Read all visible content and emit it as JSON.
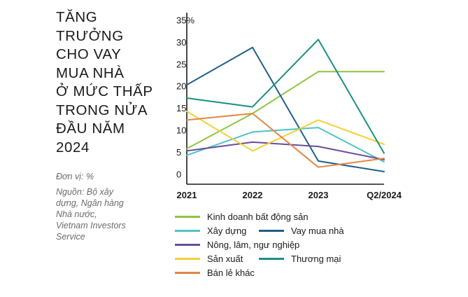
{
  "title_lines": [
    "TĂNG",
    "TRƯỞNG",
    "CHO VAY",
    "MUA NHÀ",
    "Ở MỨC THẤP",
    "TRONG NỬA",
    "ĐẦU NĂM",
    "2024"
  ],
  "unit": "Đơn vị: %",
  "source_lines": [
    "Nguồn: Bộ xây",
    "dựng, Ngân hàng",
    "Nhà nước,",
    "Vietnam Investors",
    "Service"
  ],
  "chart_data": {
    "type": "line",
    "title": "TĂNG TRƯỞNG CHO VAY MUA NHÀ Ở MỨC THẤP TRONG NỬA ĐẦU NĂM 2024",
    "unit": "%",
    "categories": [
      "2021",
      "2022",
      "2023",
      "Q2/2024"
    ],
    "ylim": [
      0,
      35
    ],
    "yticks": [
      0,
      5,
      10,
      15,
      20,
      25,
      30,
      35
    ],
    "ytick_labels": [
      "0",
      "5",
      "10",
      "15",
      "20",
      "25",
      "30",
      "35%"
    ],
    "grid": false,
    "legend_position": "bottom",
    "series": [
      {
        "name": "Kinh doanh bất động sản",
        "color": "#8dc63f",
        "values": [
          6,
          14,
          23.5,
          23.5
        ]
      },
      {
        "name": "Xây dựng",
        "color": "#4fc3c7",
        "values": [
          4.5,
          9.8,
          10.8,
          3
        ]
      },
      {
        "name": "Vay mua nhà",
        "color": "#1f5f8b",
        "values": [
          20.5,
          29,
          3.2,
          0.8
        ]
      },
      {
        "name": "Nông, lâm, ngư nghiệp",
        "color": "#6a4c9c",
        "values": [
          5.5,
          7.5,
          6.5,
          3.5
        ]
      },
      {
        "name": "Sản xuất",
        "color": "#f5d033",
        "values": [
          14.5,
          5.5,
          12.5,
          7
        ]
      },
      {
        "name": "Thương mại",
        "color": "#1a9080",
        "values": [
          17.5,
          15.5,
          30.8,
          5
        ]
      },
      {
        "name": "Bán lẻ khác",
        "color": "#e28743",
        "values": [
          12.5,
          14,
          1.8,
          3.8
        ]
      }
    ]
  }
}
